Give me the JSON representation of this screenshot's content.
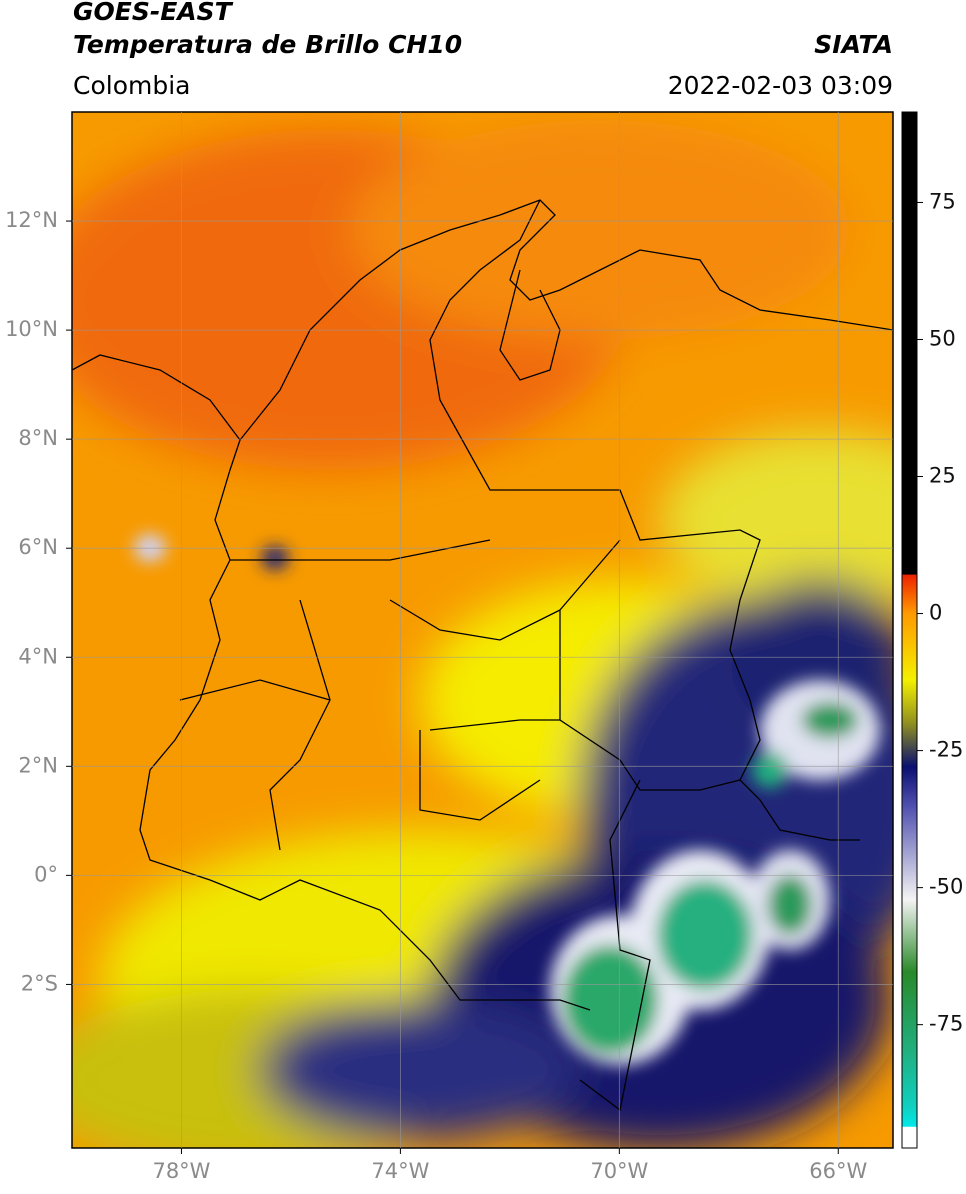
{
  "header": {
    "title": "GOES-EAST",
    "subtitle": "Temperatura de Brillo CH10",
    "source": "SIATA",
    "region": "Colombia",
    "datetime": "2022-02-03 03:09"
  },
  "map": {
    "xlim": [
      -80,
      -65
    ],
    "ylim": [
      -5,
      14
    ],
    "xticks": [
      {
        "value": -78,
        "label": "78°W"
      },
      {
        "value": -74,
        "label": "74°W"
      },
      {
        "value": -70,
        "label": "70°W"
      },
      {
        "value": -66,
        "label": "66°W"
      }
    ],
    "yticks": [
      {
        "value": 12,
        "label": "12°N"
      },
      {
        "value": 10,
        "label": "10°N"
      },
      {
        "value": 8,
        "label": "8°N"
      },
      {
        "value": 6,
        "label": "6°N"
      },
      {
        "value": 4,
        "label": "4°N"
      },
      {
        "value": 2,
        "label": "2°N"
      },
      {
        "value": 0,
        "label": "0°"
      },
      {
        "value": -2,
        "label": "2°S"
      }
    ],
    "grid": true
  },
  "colorbar": {
    "lim": [
      -97.5,
      91.5
    ],
    "ticks": [
      75,
      50,
      25,
      0,
      -25,
      -50,
      -75
    ]
  }
}
